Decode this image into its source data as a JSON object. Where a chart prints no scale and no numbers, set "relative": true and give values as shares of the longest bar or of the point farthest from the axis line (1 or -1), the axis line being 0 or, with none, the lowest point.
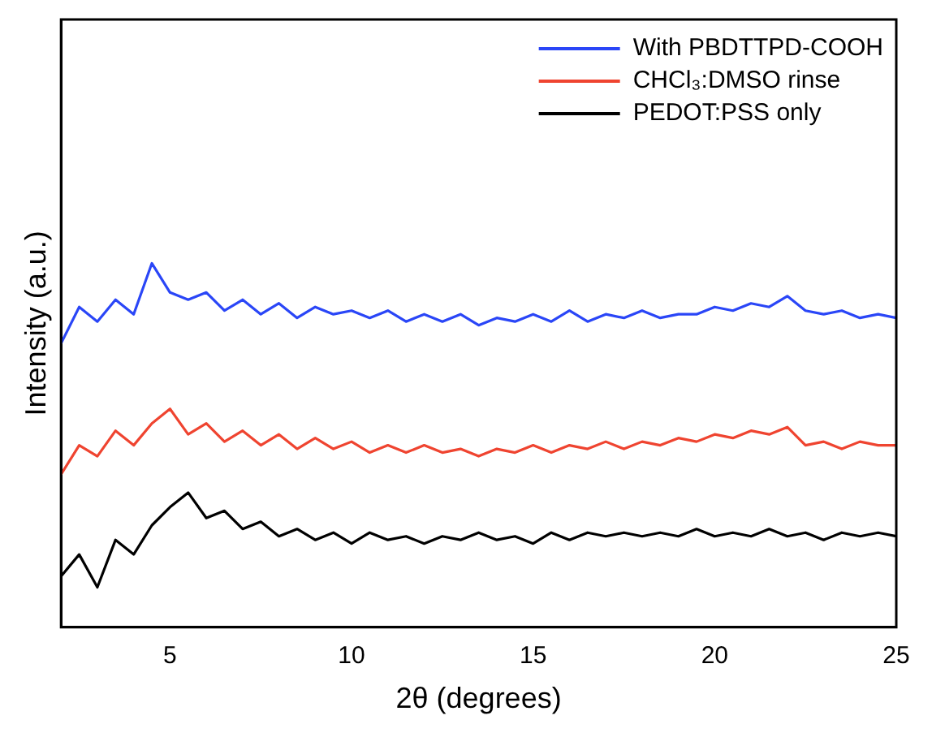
{
  "chart_data": {
    "type": "line",
    "relative": true,
    "xlabel": "2θ (degrees)",
    "ylabel": "Intensity (a.u.)",
    "xlim": [
      2,
      25
    ],
    "xticks": [
      5,
      10,
      15,
      20,
      25
    ],
    "grid": false,
    "legend": "top right",
    "marker": "none",
    "line_style": "solid",
    "x": [
      2,
      2.5,
      3,
      3.5,
      4,
      4.5,
      5,
      5.5,
      6,
      6.5,
      7,
      7.5,
      8,
      8.5,
      9,
      9.5,
      10,
      10.5,
      11,
      11.5,
      12,
      12.5,
      13,
      13.5,
      14,
      14.5,
      15,
      15.5,
      16,
      16.5,
      17,
      17.5,
      18,
      18.5,
      19,
      19.5,
      20,
      20.5,
      21,
      21.5,
      22,
      22.5,
      23,
      23.5,
      24,
      24.5,
      25
    ],
    "series": [
      {
        "name": "With PBDTTPD-COOH",
        "color": "#2a46f7",
        "values": [
          0.78,
          0.88,
          0.84,
          0.9,
          0.86,
          1.0,
          0.92,
          0.9,
          0.92,
          0.87,
          0.9,
          0.86,
          0.89,
          0.85,
          0.88,
          0.86,
          0.87,
          0.85,
          0.87,
          0.84,
          0.86,
          0.84,
          0.86,
          0.83,
          0.85,
          0.84,
          0.86,
          0.84,
          0.87,
          0.84,
          0.86,
          0.85,
          0.87,
          0.85,
          0.86,
          0.86,
          0.88,
          0.87,
          0.89,
          0.88,
          0.91,
          0.87,
          0.86,
          0.87,
          0.85,
          0.86,
          0.85
        ]
      },
      {
        "name": "CHCl₃:DMSO rinse",
        "color": "#ef4430",
        "values": [
          0.42,
          0.5,
          0.47,
          0.54,
          0.5,
          0.56,
          0.6,
          0.53,
          0.56,
          0.51,
          0.54,
          0.5,
          0.53,
          0.49,
          0.52,
          0.49,
          0.51,
          0.48,
          0.5,
          0.48,
          0.5,
          0.48,
          0.49,
          0.47,
          0.49,
          0.48,
          0.5,
          0.48,
          0.5,
          0.49,
          0.51,
          0.49,
          0.51,
          0.5,
          0.52,
          0.51,
          0.53,
          0.52,
          0.54,
          0.53,
          0.55,
          0.5,
          0.51,
          0.49,
          0.51,
          0.5,
          0.5
        ]
      },
      {
        "name": "PEDOT:PSS only",
        "color": "#000000",
        "values": [
          0.14,
          0.2,
          0.11,
          0.24,
          0.2,
          0.28,
          0.33,
          0.37,
          0.3,
          0.32,
          0.27,
          0.29,
          0.25,
          0.27,
          0.24,
          0.26,
          0.23,
          0.26,
          0.24,
          0.25,
          0.23,
          0.25,
          0.24,
          0.26,
          0.24,
          0.25,
          0.23,
          0.26,
          0.24,
          0.26,
          0.25,
          0.26,
          0.25,
          0.26,
          0.25,
          0.27,
          0.25,
          0.26,
          0.25,
          0.27,
          0.25,
          0.26,
          0.24,
          0.26,
          0.25,
          0.26,
          0.25
        ]
      }
    ]
  }
}
